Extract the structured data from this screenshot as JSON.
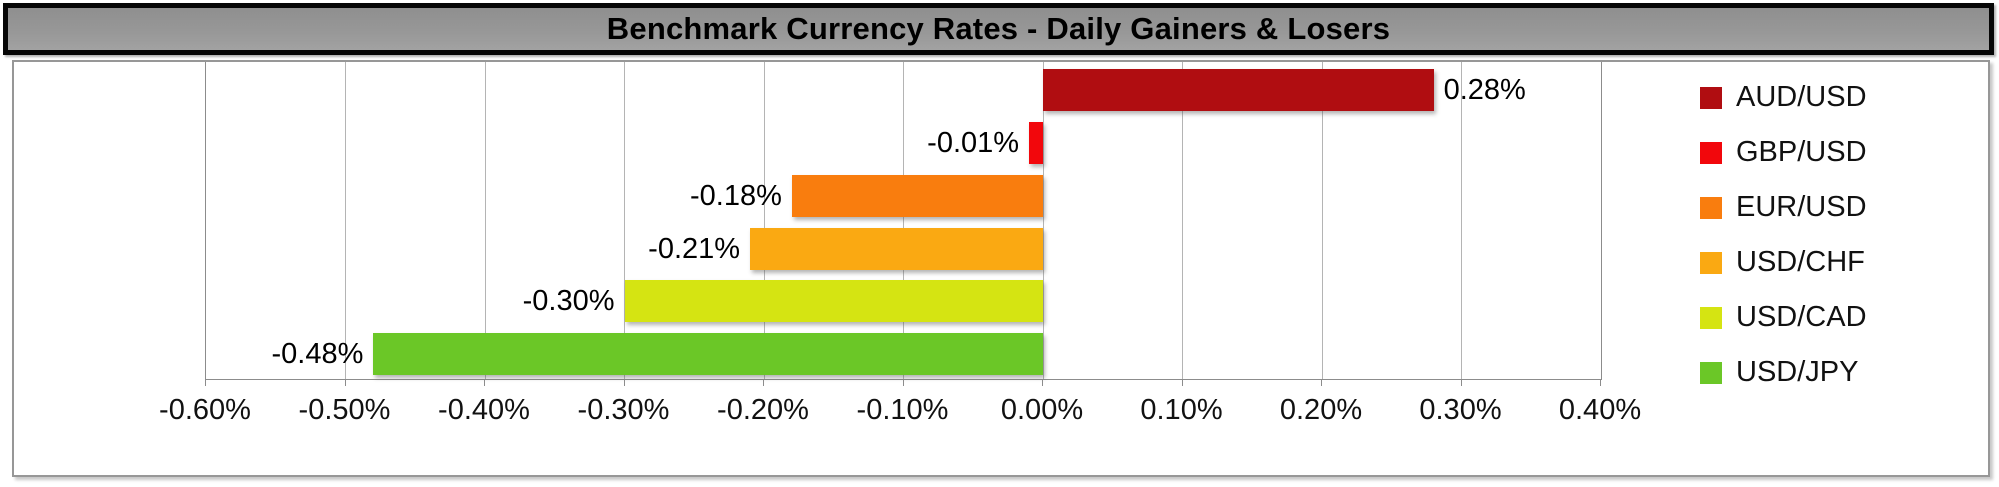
{
  "title": "Benchmark Currency Rates - Daily Gainers & Losers",
  "chart_data": {
    "type": "bar",
    "orientation": "horizontal",
    "title": "Benchmark Currency Rates - Daily Gainers & Losers",
    "series": [
      {
        "name": "AUD/USD",
        "value": 0.28,
        "value_label": "0.28%",
        "color": "#b00d11"
      },
      {
        "name": "GBP/USD",
        "value": -0.01,
        "value_label": "-0.01%",
        "color": "#f2070c"
      },
      {
        "name": "EUR/USD",
        "value": -0.18,
        "value_label": "-0.18%",
        "color": "#f97d0e"
      },
      {
        "name": "USD/CHF",
        "value": -0.21,
        "value_label": "-0.21%",
        "color": "#faa912"
      },
      {
        "name": "USD/CAD",
        "value": -0.3,
        "value_label": "-0.30%",
        "color": "#d5e412"
      },
      {
        "name": "USD/JPY",
        "value": -0.48,
        "value_label": "-0.48%",
        "color": "#6bc727"
      }
    ],
    "x_axis": {
      "min": -0.6,
      "max": 0.4,
      "step": 0.1,
      "unit": "%",
      "tick_labels": [
        "-0.60%",
        "-0.50%",
        "-0.40%",
        "-0.30%",
        "-0.20%",
        "-0.10%",
        "0.00%",
        "0.10%",
        "0.20%",
        "0.30%",
        "0.40%"
      ]
    },
    "grid": true,
    "legend_position": "right",
    "legend_entries": [
      "AUD/USD",
      "GBP/USD",
      "EUR/USD",
      "USD/CHF",
      "USD/CAD",
      "USD/JPY"
    ]
  }
}
